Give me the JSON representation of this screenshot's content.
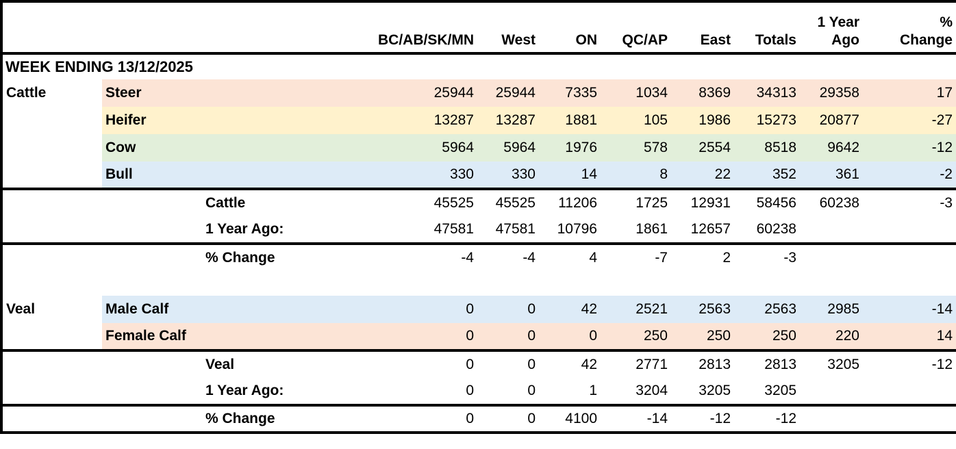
{
  "week_title": "WEEK ENDING 13/12/2025",
  "header": {
    "top_labels": [
      "",
      "",
      "",
      "",
      "",
      "1 Year",
      "%"
    ],
    "bottom_labels": [
      "BC/AB/SK/MN",
      "West",
      "ON",
      "QC/AP",
      "East",
      "Totals",
      "Ago",
      "Change"
    ]
  },
  "colors": {
    "orange": "#fce4d6",
    "yellow": "#fff2cc",
    "green": "#e2efda",
    "blue": "#ddebf7",
    "border": "#000000",
    "background": "#ffffff"
  },
  "rows": [
    {
      "type": "class",
      "species": "Cattle",
      "label": "Steer",
      "bg": "orange",
      "values": [
        "25944",
        "25944",
        "7335",
        "1034",
        "8369",
        "34313",
        "29358",
        "17"
      ],
      "section_end": false
    },
    {
      "type": "class",
      "species": "",
      "label": "Heifer",
      "bg": "yellow",
      "values": [
        "13287",
        "13287",
        "1881",
        "105",
        "1986",
        "15273",
        "20877",
        "-27"
      ],
      "section_end": false
    },
    {
      "type": "class",
      "species": "",
      "label": "Cow",
      "bg": "green",
      "values": [
        "5964",
        "5964",
        "1976",
        "578",
        "2554",
        "8518",
        "9642",
        "-12"
      ],
      "section_end": false
    },
    {
      "type": "class",
      "species": "",
      "label": "Bull",
      "bg": "blue",
      "values": [
        "330",
        "330",
        "14",
        "8",
        "22",
        "352",
        "361",
        "-2"
      ],
      "section_end": true
    },
    {
      "type": "total",
      "species": "",
      "label": "Cattle",
      "bg": "",
      "values": [
        "45525",
        "45525",
        "11206",
        "1725",
        "12931",
        "58456",
        "60238",
        "-3"
      ],
      "section_end": false
    },
    {
      "type": "total",
      "species": "",
      "label": "1 Year Ago:",
      "bg": "",
      "values": [
        "47581",
        "47581",
        "10796",
        "1861",
        "12657",
        "60238",
        "",
        ""
      ],
      "section_end": true
    },
    {
      "type": "total",
      "species": "",
      "label": "% Change",
      "bg": "",
      "values": [
        "-4",
        "-4",
        "4",
        "-7",
        "2",
        "-3",
        "",
        ""
      ],
      "section_end": false
    },
    {
      "type": "empty",
      "species": "",
      "label": "",
      "bg": "",
      "values": [
        "",
        "",
        "",
        "",
        "",
        "",
        "",
        ""
      ],
      "section_end": false
    },
    {
      "type": "class",
      "species": "Veal",
      "label": "Male Calf",
      "bg": "blue",
      "values": [
        "0",
        "0",
        "42",
        "2521",
        "2563",
        "2563",
        "2985",
        "-14"
      ],
      "section_end": false
    },
    {
      "type": "class",
      "species": "",
      "label": "Female Calf",
      "bg": "orange",
      "values": [
        "0",
        "0",
        "0",
        "250",
        "250",
        "250",
        "220",
        "14"
      ],
      "section_end": true
    },
    {
      "type": "total",
      "species": "",
      "label": "Veal",
      "bg": "",
      "values": [
        "0",
        "0",
        "42",
        "2771",
        "2813",
        "2813",
        "3205",
        "-12"
      ],
      "section_end": false
    },
    {
      "type": "total",
      "species": "",
      "label": "1 Year Ago:",
      "bg": "",
      "values": [
        "0",
        "0",
        "1",
        "3204",
        "3205",
        "3205",
        "",
        ""
      ],
      "section_end": true
    },
    {
      "type": "total",
      "species": "",
      "label": "% Change",
      "bg": "",
      "values": [
        "0",
        "0",
        "4100",
        "-14",
        "-12",
        "-12",
        "",
        ""
      ],
      "section_end": false
    }
  ]
}
